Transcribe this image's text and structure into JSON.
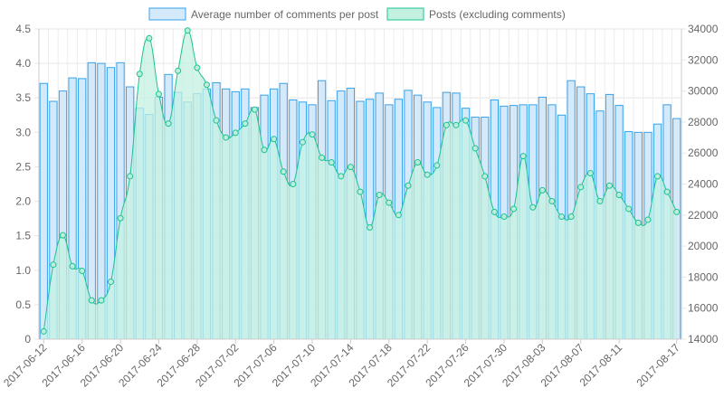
{
  "chart_data": {
    "type": "bar",
    "legend_position": "top",
    "grid": true,
    "series": [
      {
        "name": "Average number of comments per post",
        "type": "bar",
        "axis": "left",
        "color": "#36a2eb",
        "fill": "#d4e9f9",
        "values": [
          3.71,
          3.45,
          3.6,
          3.79,
          3.78,
          4.01,
          4.0,
          3.94,
          4.01,
          3.66,
          3.35,
          3.26,
          3.51,
          3.84,
          3.58,
          3.44,
          3.56,
          3.63,
          3.72,
          3.63,
          3.59,
          3.63,
          3.36,
          3.54,
          3.63,
          3.71,
          3.47,
          3.44,
          3.4,
          3.75,
          3.46,
          3.6,
          3.64,
          3.45,
          3.48,
          3.57,
          3.4,
          3.48,
          3.61,
          3.54,
          3.44,
          3.36,
          3.58,
          3.57,
          3.35,
          3.22,
          3.22,
          3.47,
          3.38,
          3.39,
          3.4,
          3.4,
          3.51,
          3.4,
          3.25,
          3.75,
          3.66,
          3.56,
          3.31,
          3.55,
          3.39,
          3.01,
          3.0,
          3.0,
          3.12,
          3.4,
          3.2
        ]
      },
      {
        "name": "Posts (excluding comments)",
        "type": "area",
        "axis": "right",
        "color": "#1dc391",
        "fill": "#c4f0e2",
        "values": [
          14500,
          18800,
          20700,
          18700,
          18400,
          16500,
          16500,
          17700,
          21800,
          24500,
          31100,
          33400,
          29800,
          27900,
          31300,
          33900,
          31500,
          30400,
          28100,
          27000,
          27300,
          27900,
          28800,
          26200,
          26900,
          24800,
          24000,
          26700,
          27200,
          25700,
          25400,
          24500,
          25100,
          23500,
          21200,
          23300,
          22800,
          22000,
          23900,
          25400,
          24600,
          25200,
          27800,
          27800,
          28100,
          26300,
          24500,
          22200,
          21900,
          22400,
          25800,
          22500,
          23600,
          22900,
          21900,
          21900,
          23800,
          24700,
          22900,
          23900,
          23300,
          22400,
          21500,
          21700,
          24500,
          23500,
          22200
        ]
      }
    ],
    "x_tick_labels": [
      "2017-06-12",
      "2017-06-16",
      "2017-06-20",
      "2017-06-24",
      "2017-06-28",
      "2017-07-02",
      "2017-07-06",
      "2017-07-10",
      "2017-07-14",
      "2017-07-18",
      "2017-07-22",
      "2017-07-26",
      "2017-07-30",
      "2017-08-03",
      "2017-08-07",
      "2017-08-11",
      "2017-08-17"
    ],
    "x_tick_indices": [
      0,
      4,
      8,
      12,
      16,
      20,
      24,
      28,
      32,
      36,
      40,
      44,
      48,
      52,
      56,
      60,
      66
    ],
    "y_left": {
      "min": 0,
      "max": 4.5,
      "ticks": [
        "0",
        "0.5",
        "1.0",
        "1.5",
        "2.0",
        "2.5",
        "3.0",
        "3.5",
        "4.0",
        "4.5"
      ]
    },
    "y_right": {
      "min": 14000,
      "max": 34000,
      "ticks": [
        "14000",
        "16000",
        "18000",
        "20000",
        "22000",
        "24000",
        "26000",
        "28000",
        "30000",
        "32000",
        "34000"
      ]
    }
  }
}
